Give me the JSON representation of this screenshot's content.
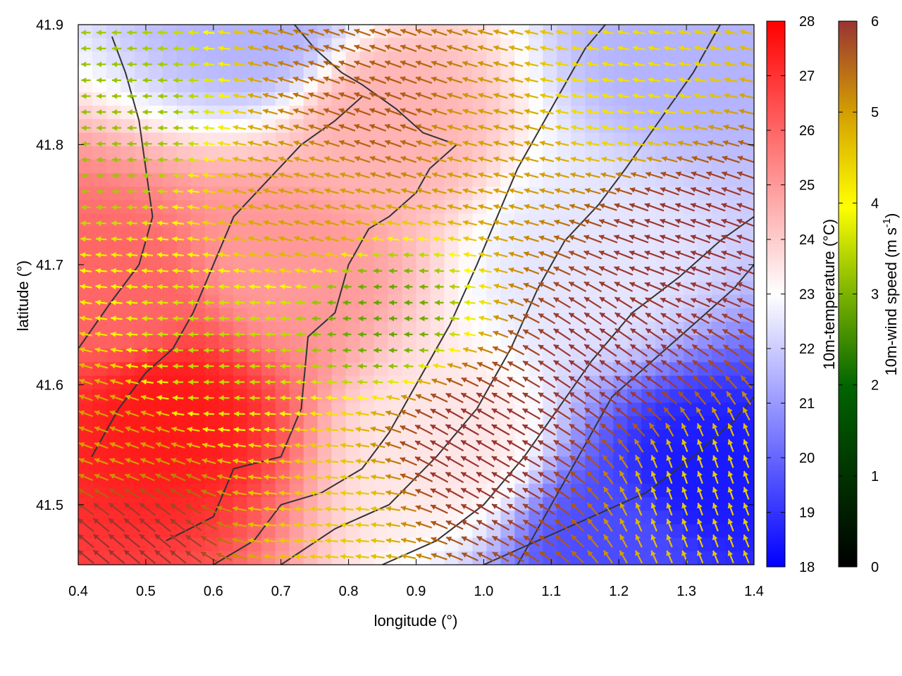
{
  "chart_data": {
    "type": "heatmap",
    "title": "",
    "xlabel": "longitude (°)",
    "ylabel": "latitude (°)",
    "xlim": [
      0.4,
      1.4
    ],
    "ylim": [
      41.45,
      41.9
    ],
    "xticks": [
      0.4,
      0.5,
      0.6,
      0.7,
      0.8,
      0.9,
      1.0,
      1.1,
      1.2,
      1.3,
      1.4
    ],
    "xtick_labels": [
      "0.4",
      "0.5",
      "0.6",
      "0.7",
      "0.8",
      "0.9",
      "1.0",
      "1.1",
      "1.2",
      "1.3",
      "1.4"
    ],
    "yticks": [
      41.5,
      41.6,
      41.7,
      41.8,
      41.9
    ],
    "ytick_labels": [
      "41.5",
      "41.6",
      "41.7",
      "41.8",
      "41.9"
    ],
    "grid": false,
    "temperature_colorbar": {
      "label": "10m-temperature (°C)",
      "range": [
        18,
        28
      ],
      "ticks": [
        18,
        19,
        20,
        21,
        22,
        23,
        24,
        25,
        26,
        27,
        28
      ],
      "tick_labels": [
        "18",
        "19",
        "20",
        "21",
        "22",
        "23",
        "24",
        "25",
        "26",
        "27",
        "28"
      ],
      "colors": [
        "#0000ff",
        "#ffffff",
        "#ff0000"
      ]
    },
    "wind_colorbar": {
      "label_main": "10m-wind speed (m s",
      "label_sup": "-1",
      "label_close": ")",
      "range": [
        0,
        6
      ],
      "ticks": [
        0,
        1,
        2,
        3,
        4,
        5,
        6
      ],
      "tick_labels": [
        "0",
        "1",
        "2",
        "3",
        "4",
        "5",
        "6"
      ],
      "colors": [
        "#000000",
        "#006400",
        "#7cb300",
        "#ffff00",
        "#d4a000",
        "#b05a10",
        "#993333"
      ]
    },
    "temperature_regions": [
      {
        "lon": 0.53,
        "lat": 41.58,
        "temp": 27.5,
        "spread": 0.09
      },
      {
        "lon": 0.47,
        "lat": 41.67,
        "temp": 26.0,
        "spread": 0.08
      },
      {
        "lon": 0.7,
        "lat": 41.7,
        "temp": 25.0,
        "spread": 0.2
      },
      {
        "lon": 0.85,
        "lat": 41.82,
        "temp": 24.5,
        "spread": 0.15
      },
      {
        "lon": 0.95,
        "lat": 41.55,
        "temp": 23.5,
        "spread": 0.15
      },
      {
        "lon": 1.33,
        "lat": 41.52,
        "temp": 18.5,
        "spread": 0.12
      },
      {
        "lon": 1.2,
        "lat": 41.47,
        "temp": 19.5,
        "spread": 0.12
      },
      {
        "lon": 1.3,
        "lat": 41.88,
        "temp": 21.5,
        "spread": 0.12
      },
      {
        "lon": 0.67,
        "lat": 41.9,
        "temp": 21.5,
        "spread": 0.06
      },
      {
        "lon": 1.15,
        "lat": 41.7,
        "temp": 22.5,
        "spread": 0.15
      }
    ],
    "wind_regions": [
      {
        "lon": 0.45,
        "lat": 41.82,
        "speed": 2.2,
        "dir_deg": 180
      },
      {
        "lon": 0.45,
        "lat": 41.55,
        "speed": 4.0,
        "dir_deg": 160
      },
      {
        "lon": 0.6,
        "lat": 41.62,
        "speed": 2.5,
        "dir_deg": 180
      },
      {
        "lon": 0.75,
        "lat": 41.75,
        "speed": 4.0,
        "dir_deg": 165
      },
      {
        "lon": 0.75,
        "lat": 41.5,
        "speed": 3.5,
        "dir_deg": 175
      },
      {
        "lon": 0.85,
        "lat": 41.66,
        "speed": 1.8,
        "dir_deg": 180
      },
      {
        "lon": 0.85,
        "lat": 41.83,
        "speed": 5.0,
        "dir_deg": 160
      },
      {
        "lon": 1.0,
        "lat": 41.8,
        "speed": 4.0,
        "dir_deg": 165
      },
      {
        "lon": 1.2,
        "lat": 41.84,
        "speed": 3.3,
        "dir_deg": 170
      },
      {
        "lon": 1.0,
        "lat": 41.55,
        "speed": 6.0,
        "dir_deg": 150
      },
      {
        "lon": 1.2,
        "lat": 41.62,
        "speed": 6.0,
        "dir_deg": 145
      },
      {
        "lon": 1.3,
        "lat": 41.72,
        "speed": 6.0,
        "dir_deg": 160
      },
      {
        "lon": 1.33,
        "lat": 41.52,
        "speed": 3.5,
        "dir_deg": 110
      },
      {
        "lon": 0.47,
        "lat": 41.47,
        "speed": 6.0,
        "dir_deg": 140
      }
    ],
    "boundaries": [
      [
        [
          0.53,
          41.47
        ],
        [
          0.6,
          41.49
        ],
        [
          0.63,
          41.53
        ],
        [
          0.7,
          41.54
        ],
        [
          0.73,
          41.58
        ],
        [
          0.74,
          41.64
        ],
        [
          0.78,
          41.66
        ],
        [
          0.8,
          41.7
        ],
        [
          0.83,
          41.73
        ],
        [
          0.86,
          41.74
        ],
        [
          0.9,
          41.76
        ],
        [
          0.92,
          41.78
        ],
        [
          0.96,
          41.8
        ],
        [
          0.91,
          41.81
        ],
        [
          0.87,
          41.83
        ],
        [
          0.82,
          41.85
        ],
        [
          0.79,
          41.86
        ],
        [
          0.75,
          41.88
        ],
        [
          0.72,
          41.9
        ]
      ],
      [
        [
          0.6,
          41.45
        ],
        [
          0.66,
          41.47
        ],
        [
          0.7,
          41.5
        ],
        [
          0.76,
          41.51
        ],
        [
          0.82,
          41.53
        ],
        [
          0.86,
          41.56
        ],
        [
          0.9,
          41.6
        ],
        [
          0.95,
          41.65
        ],
        [
          0.99,
          41.7
        ],
        [
          1.02,
          41.74
        ],
        [
          1.05,
          41.78
        ],
        [
          1.09,
          41.82
        ],
        [
          1.12,
          41.85
        ],
        [
          1.15,
          41.88
        ],
        [
          1.18,
          41.9
        ]
      ],
      [
        [
          0.7,
          41.45
        ],
        [
          0.78,
          41.48
        ],
        [
          0.86,
          41.5
        ],
        [
          0.93,
          41.54
        ],
        [
          0.99,
          41.58
        ],
        [
          1.04,
          41.63
        ],
        [
          1.08,
          41.68
        ],
        [
          1.12,
          41.72
        ],
        [
          1.17,
          41.75
        ],
        [
          1.21,
          41.78
        ],
        [
          1.26,
          41.82
        ],
        [
          1.31,
          41.86
        ],
        [
          1.35,
          41.9
        ]
      ],
      [
        [
          0.85,
          41.45
        ],
        [
          0.93,
          41.47
        ],
        [
          1.0,
          41.5
        ],
        [
          1.06,
          41.54
        ],
        [
          1.11,
          41.58
        ],
        [
          1.16,
          41.62
        ],
        [
          1.22,
          41.66
        ],
        [
          1.29,
          41.69
        ],
        [
          1.35,
          41.72
        ],
        [
          1.4,
          41.74
        ]
      ],
      [
        [
          1.0,
          41.45
        ],
        [
          1.08,
          41.47
        ],
        [
          1.16,
          41.49
        ],
        [
          1.24,
          41.51
        ],
        [
          1.31,
          41.54
        ],
        [
          1.37,
          41.57
        ],
        [
          1.4,
          41.59
        ]
      ],
      [
        [
          0.42,
          41.54
        ],
        [
          0.46,
          41.58
        ],
        [
          0.5,
          41.61
        ],
        [
          0.54,
          41.63
        ],
        [
          0.57,
          41.66
        ],
        [
          0.6,
          41.7
        ],
        [
          0.63,
          41.74
        ],
        [
          0.68,
          41.77
        ],
        [
          0.73,
          41.8
        ],
        [
          0.78,
          41.82
        ],
        [
          0.82,
          41.84
        ]
      ],
      [
        [
          0.4,
          41.63
        ],
        [
          0.45,
          41.67
        ],
        [
          0.49,
          41.7
        ],
        [
          0.51,
          41.74
        ],
        [
          0.5,
          41.78
        ],
        [
          0.49,
          41.82
        ],
        [
          0.47,
          41.86
        ],
        [
          0.45,
          41.89
        ]
      ],
      [
        [
          1.05,
          41.45
        ],
        [
          1.1,
          41.5
        ],
        [
          1.15,
          41.55
        ],
        [
          1.19,
          41.59
        ],
        [
          1.25,
          41.62
        ],
        [
          1.31,
          41.65
        ],
        [
          1.37,
          41.68
        ],
        [
          1.4,
          41.7
        ]
      ]
    ]
  }
}
